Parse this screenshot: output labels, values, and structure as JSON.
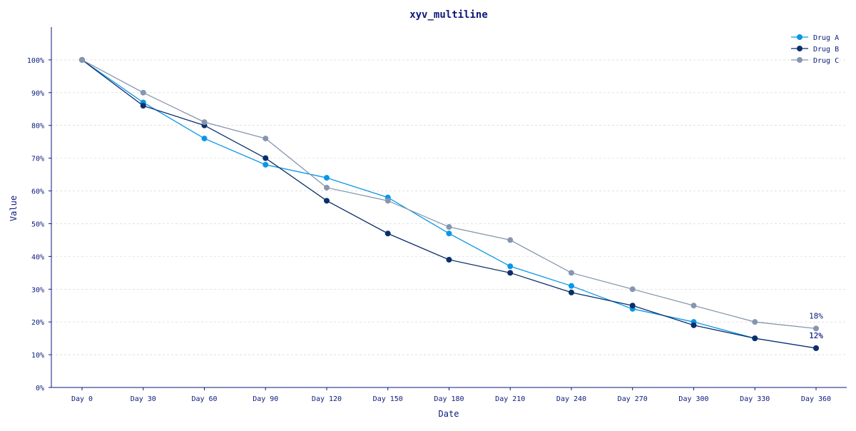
{
  "chart_data": {
    "type": "line",
    "title": "xyv_multiline",
    "xlabel": "Date",
    "ylabel": "Value",
    "categories": [
      "Day 0",
      "Day 30",
      "Day 60",
      "Day 90",
      "Day 120",
      "Day 150",
      "Day 180",
      "Day 210",
      "Day 240",
      "Day 270",
      "Day 300",
      "Day 330",
      "Day 360"
    ],
    "ylim": [
      0,
      110
    ],
    "yticks": [
      0,
      10,
      20,
      30,
      40,
      50,
      60,
      70,
      80,
      90,
      100
    ],
    "ytick_labels": [
      "0%",
      "10%",
      "20%",
      "30%",
      "40%",
      "50%",
      "60%",
      "70%",
      "80%",
      "90%",
      "100%"
    ],
    "grid": true,
    "legend_position": "top-right",
    "series": [
      {
        "name": "Drug A",
        "color": "#0a96e8",
        "values": [
          100,
          87,
          76,
          68,
          64,
          58,
          47,
          37,
          31,
          24,
          20,
          15,
          12
        ]
      },
      {
        "name": "Drug B",
        "color": "#0a2f6b",
        "values": [
          100,
          86,
          80,
          70,
          57,
          47,
          39,
          35,
          29,
          25,
          19,
          15,
          12
        ]
      },
      {
        "name": "Drug C",
        "color": "#8696b0",
        "values": [
          100,
          90,
          81,
          76,
          61,
          57,
          49,
          45,
          35,
          30,
          25,
          20,
          18
        ]
      }
    ],
    "end_labels": [
      "12%",
      "12%",
      "18%"
    ]
  }
}
